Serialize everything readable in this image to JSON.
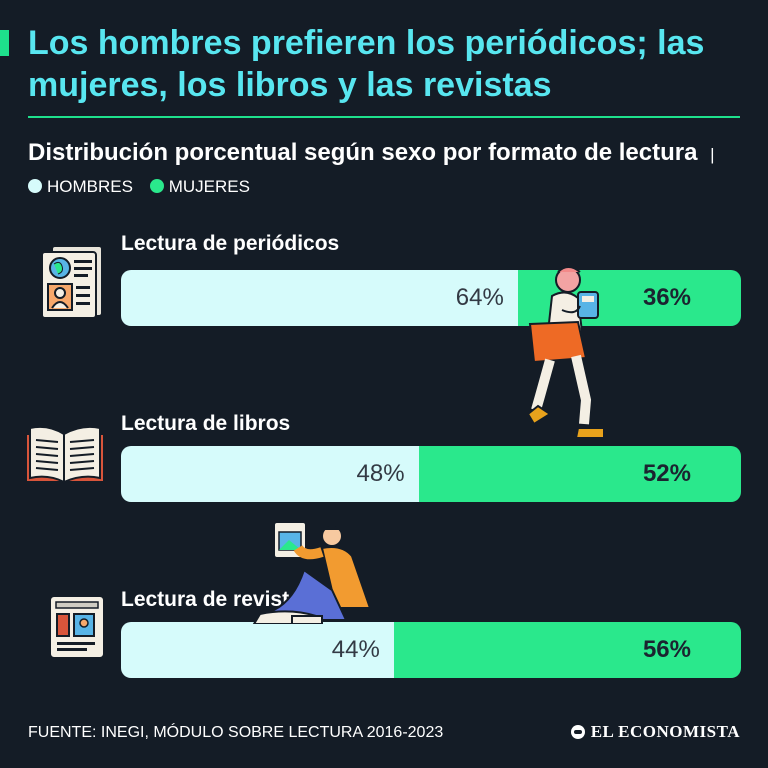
{
  "header": {
    "title": "Los hombres prefieren los periódicos; las mujeres, los libros y las revistas",
    "subtitle": "Distribución porcentual según sexo por formato de lectura",
    "legend_separator": "|"
  },
  "colors": {
    "men": "#d6fbfb",
    "women": "#2ae88c",
    "background": "#141c26",
    "title": "#58e6f0",
    "accent": "#1ee08c"
  },
  "chart_data": {
    "type": "bar",
    "orientation": "horizontal",
    "stacked": true,
    "normalized": true,
    "categories": [
      "Lectura de periódicos",
      "Lectura de libros",
      "Lectura de revistas"
    ],
    "series": [
      {
        "name": "HOMBRES",
        "values": [
          64,
          48,
          44
        ],
        "labels": [
          "64%",
          "48%",
          "44%"
        ],
        "color": "#d6fbfb"
      },
      {
        "name": "MUJERES",
        "values": [
          36,
          52,
          56
        ],
        "labels": [
          "36%",
          "52%",
          "56%"
        ],
        "color": "#2ae88c"
      }
    ],
    "title": "Distribución porcentual según sexo por formato de lectura",
    "xlim": [
      0,
      100
    ],
    "legend_position": "top-left",
    "grid": false
  },
  "icons": [
    "newspaper-icon",
    "open-book-icon",
    "magazine-icon",
    "reading-person-standing-illustration",
    "reading-person-sitting-illustration"
  ],
  "footer": {
    "source": "FUENTE: INEGI, MÓDULO SOBRE LECTURA 2016-2023",
    "brand": "EL ECONOMISTA"
  }
}
